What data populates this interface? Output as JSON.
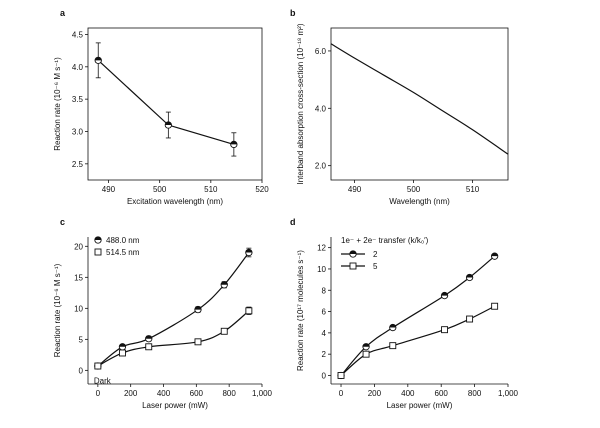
{
  "chart_data": [
    {
      "panel": "a",
      "type": "line",
      "xlabel": "Excitation wavelength (nm)",
      "ylabel": "Reaction rate (10⁻⁶ M s⁻¹)",
      "xlim": [
        486,
        520
      ],
      "ylim": [
        2.25,
        4.6
      ],
      "xticks": [
        490,
        500,
        510,
        520
      ],
      "yticks": [
        2.5,
        3.0,
        3.5,
        4.0,
        4.5
      ],
      "ytick_labels": [
        "2.5",
        "3.0",
        "3.5",
        "4.0",
        "4.5"
      ],
      "series": [
        {
          "name": "rate",
          "marker": "circle-half",
          "x": [
            488.0,
            501.7,
            514.5
          ],
          "y": [
            4.1,
            3.1,
            2.8
          ],
          "err": [
            0.27,
            0.2,
            0.18
          ]
        }
      ]
    },
    {
      "panel": "b",
      "type": "line",
      "xlabel": "Wavelength (nm)",
      "ylabel": "Interband absorption cross-section (10⁻¹⁸ m²)",
      "xlim": [
        486,
        516
      ],
      "ylim": [
        1.5,
        6.8
      ],
      "xticks": [
        490,
        500,
        510
      ],
      "yticks": [
        2.0,
        4.0,
        6.0
      ],
      "ytick_labels": [
        "2.0",
        "4.0",
        "6.0"
      ],
      "series": [
        {
          "name": "cross-section",
          "marker": "none",
          "x": [
            486,
            490,
            495,
            500,
            505,
            510,
            516
          ],
          "y": [
            6.25,
            5.75,
            5.15,
            4.55,
            3.9,
            3.25,
            2.4
          ]
        }
      ]
    },
    {
      "panel": "c",
      "type": "line",
      "xlabel": "Laser power (mW)",
      "ylabel": "Reaction rate (10⁻⁶ M s⁻¹)",
      "xlim": [
        -60,
        1000
      ],
      "ylim": [
        -2.2,
        21.5
      ],
      "xticks": [
        0,
        200,
        400,
        600,
        800,
        1000
      ],
      "xtick_labels": [
        "0",
        "200",
        "400",
        "600",
        "800",
        "1,000"
      ],
      "yticks": [
        0,
        5,
        10,
        15,
        20
      ],
      "ytick_labels": [
        "0",
        "5",
        "10",
        "15",
        "20"
      ],
      "annotation": "Dark",
      "legend": [
        "488.0 nm",
        "514.5 nm"
      ],
      "series": [
        {
          "name": "488.0 nm",
          "marker": "circle-half",
          "x": [
            0,
            150,
            310,
            610,
            770,
            920
          ],
          "y": [
            0.7,
            3.8,
            5.1,
            9.8,
            13.8,
            19.0
          ],
          "err": [
            0.3,
            0.35,
            0.4,
            0.45,
            0.5,
            0.7
          ]
        },
        {
          "name": "514.5 nm",
          "marker": "square-open",
          "x": [
            0,
            150,
            310,
            610,
            770,
            920
          ],
          "y": [
            0.7,
            2.8,
            3.8,
            4.6,
            6.3,
            9.6
          ],
          "err": [
            0.3,
            0.3,
            0.3,
            0.35,
            0.45,
            0.6
          ]
        }
      ]
    },
    {
      "panel": "d",
      "type": "line",
      "xlabel": "Laser power (mW)",
      "ylabel": "Reaction rate (10¹⁷ molecules s⁻¹)",
      "xlim": [
        -60,
        1000
      ],
      "ylim": [
        -0.8,
        13.0
      ],
      "xticks": [
        0,
        200,
        400,
        600,
        800,
        1000
      ],
      "xtick_labels": [
        "0",
        "200",
        "400",
        "600",
        "800",
        "1,000"
      ],
      "yticks": [
        0,
        2,
        4,
        6,
        8,
        10,
        12
      ],
      "ytick_labels": [
        "0",
        "2",
        "4",
        "6",
        "8",
        "10",
        "12"
      ],
      "legend_title": "1e⁻ + 2e⁻ transfer (k/k₀′)",
      "legend": [
        "2",
        "5"
      ],
      "series": [
        {
          "name": "2",
          "marker": "circle-half",
          "x": [
            0,
            150,
            310,
            620,
            770,
            920
          ],
          "y": [
            0,
            2.7,
            4.5,
            7.5,
            9.2,
            11.2
          ]
        },
        {
          "name": "5",
          "marker": "square-open",
          "x": [
            0,
            150,
            310,
            620,
            770,
            920
          ],
          "y": [
            0,
            2.0,
            2.8,
            4.3,
            5.3,
            6.5
          ]
        }
      ]
    }
  ]
}
